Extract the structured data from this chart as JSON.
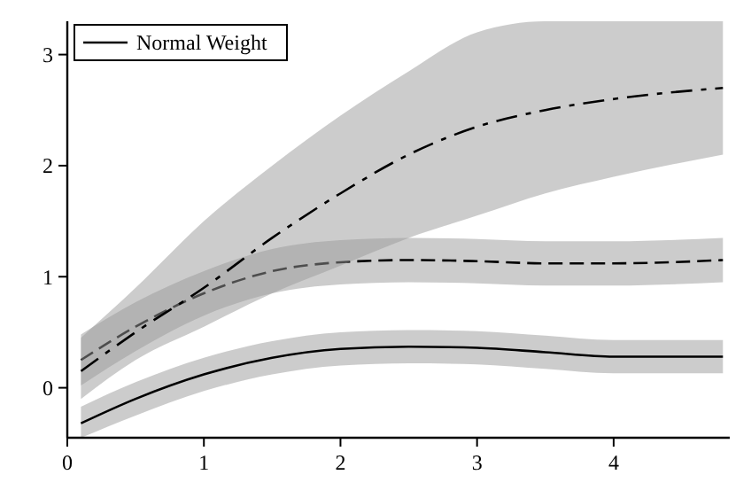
{
  "chart_data": {
    "type": "line",
    "x": [
      0.1,
      0.5,
      1,
      1.5,
      2,
      2.5,
      3,
      3.5,
      4,
      4.8
    ],
    "xlim": [
      0,
      4.85
    ],
    "xticks": [
      0,
      1,
      2,
      3,
      4
    ],
    "ylim": [
      -0.45,
      3.3
    ],
    "yticks": [
      0,
      1,
      2,
      3
    ],
    "grid": false,
    "legend": "top left",
    "marker": "none",
    "series": [
      {
        "name": "Normal Weight",
        "color": "#000000",
        "line_style": "solid",
        "values": [
          -0.32,
          -0.1,
          0.12,
          0.27,
          0.35,
          0.37,
          0.36,
          0.32,
          0.28,
          0.28
        ],
        "lower": [
          -0.45,
          -0.25,
          -0.03,
          0.12,
          0.2,
          0.22,
          0.21,
          0.17,
          0.13,
          0.13
        ],
        "upper": [
          -0.17,
          0.05,
          0.27,
          0.42,
          0.5,
          0.52,
          0.51,
          0.47,
          0.43,
          0.43
        ]
      },
      {
        "color": "#000000",
        "line_style": "dashed",
        "values": [
          0.25,
          0.55,
          0.85,
          1.05,
          1.13,
          1.15,
          1.14,
          1.12,
          1.12,
          1.15
        ],
        "lower": [
          0.02,
          0.33,
          0.65,
          0.85,
          0.93,
          0.95,
          0.94,
          0.92,
          0.92,
          0.95
        ],
        "upper": [
          0.48,
          0.77,
          1.05,
          1.25,
          1.33,
          1.35,
          1.34,
          1.32,
          1.32,
          1.35
        ]
      },
      {
        "color": "#000000",
        "line_style": "dashdot",
        "values": [
          0.15,
          0.5,
          0.9,
          1.35,
          1.75,
          2.1,
          2.35,
          2.5,
          2.6,
          2.7
        ],
        "lower": [
          -0.1,
          0.25,
          0.55,
          0.85,
          1.1,
          1.35,
          1.55,
          1.75,
          1.9,
          2.1
        ],
        "upper": [
          0.45,
          0.9,
          1.5,
          2.0,
          2.45,
          2.85,
          3.2,
          3.3,
          3.3,
          3.3
        ]
      }
    ]
  }
}
